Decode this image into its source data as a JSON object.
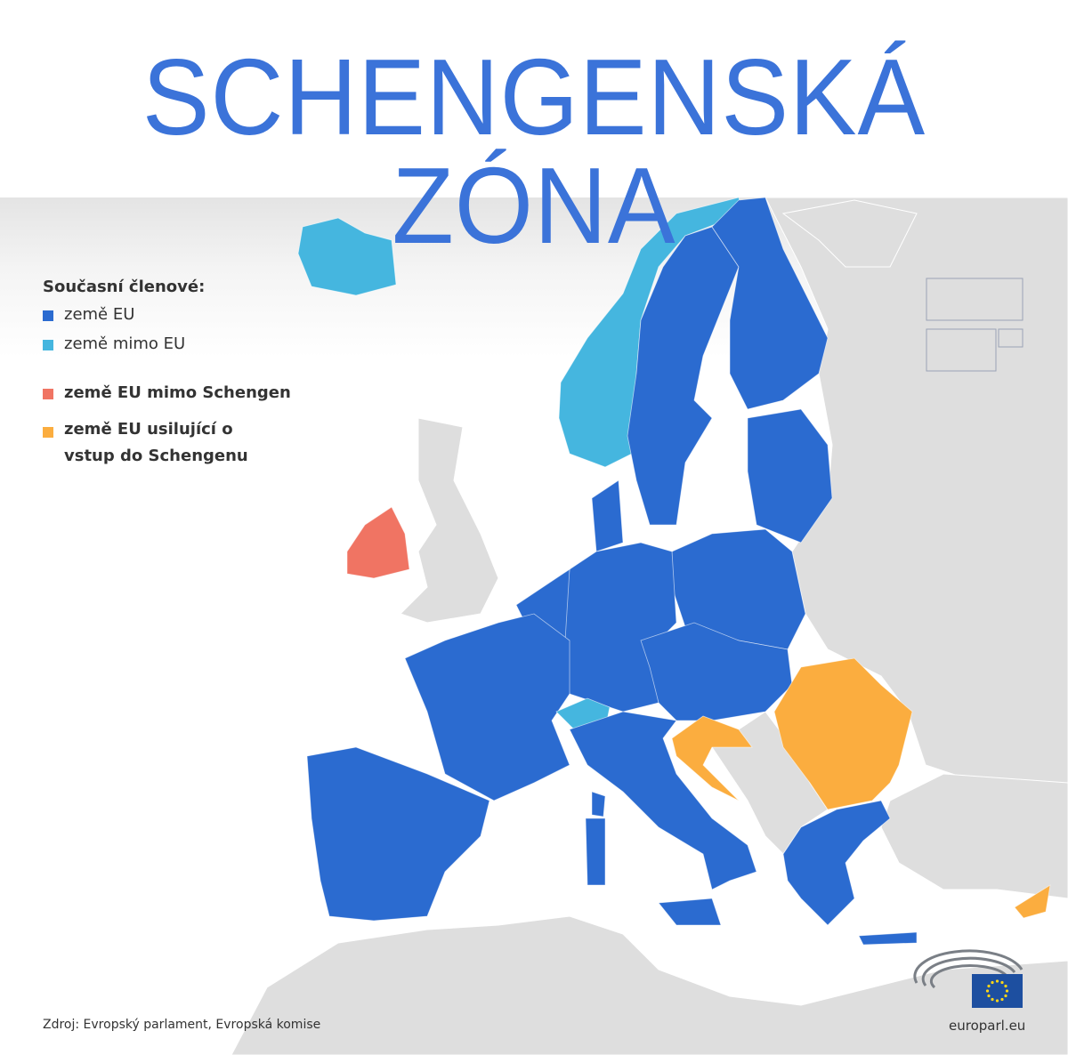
{
  "title": "SCHENGENSKÁ ZÓNA",
  "legend": {
    "heading": "Současní členové:",
    "items": [
      {
        "label": "země EU",
        "color": "#2b6bd0"
      },
      {
        "label": "země mimo EU",
        "color": "#45b6df"
      },
      {
        "label": "země EU mimo Schengen",
        "color": "#f07463"
      },
      {
        "label": "země EU usilující o vstup do Schengenu",
        "color": "#fbad3f"
      }
    ]
  },
  "colors": {
    "land": "#dedede",
    "sea": "#ffffff",
    "title": "#3b73d9"
  },
  "source": "Zdroj: Evropský parlament, Evropská komise",
  "logo": {
    "site": "europarl.eu",
    "icons": [
      "parliament-hemicycle-icon",
      "eu-flag-icon"
    ]
  }
}
